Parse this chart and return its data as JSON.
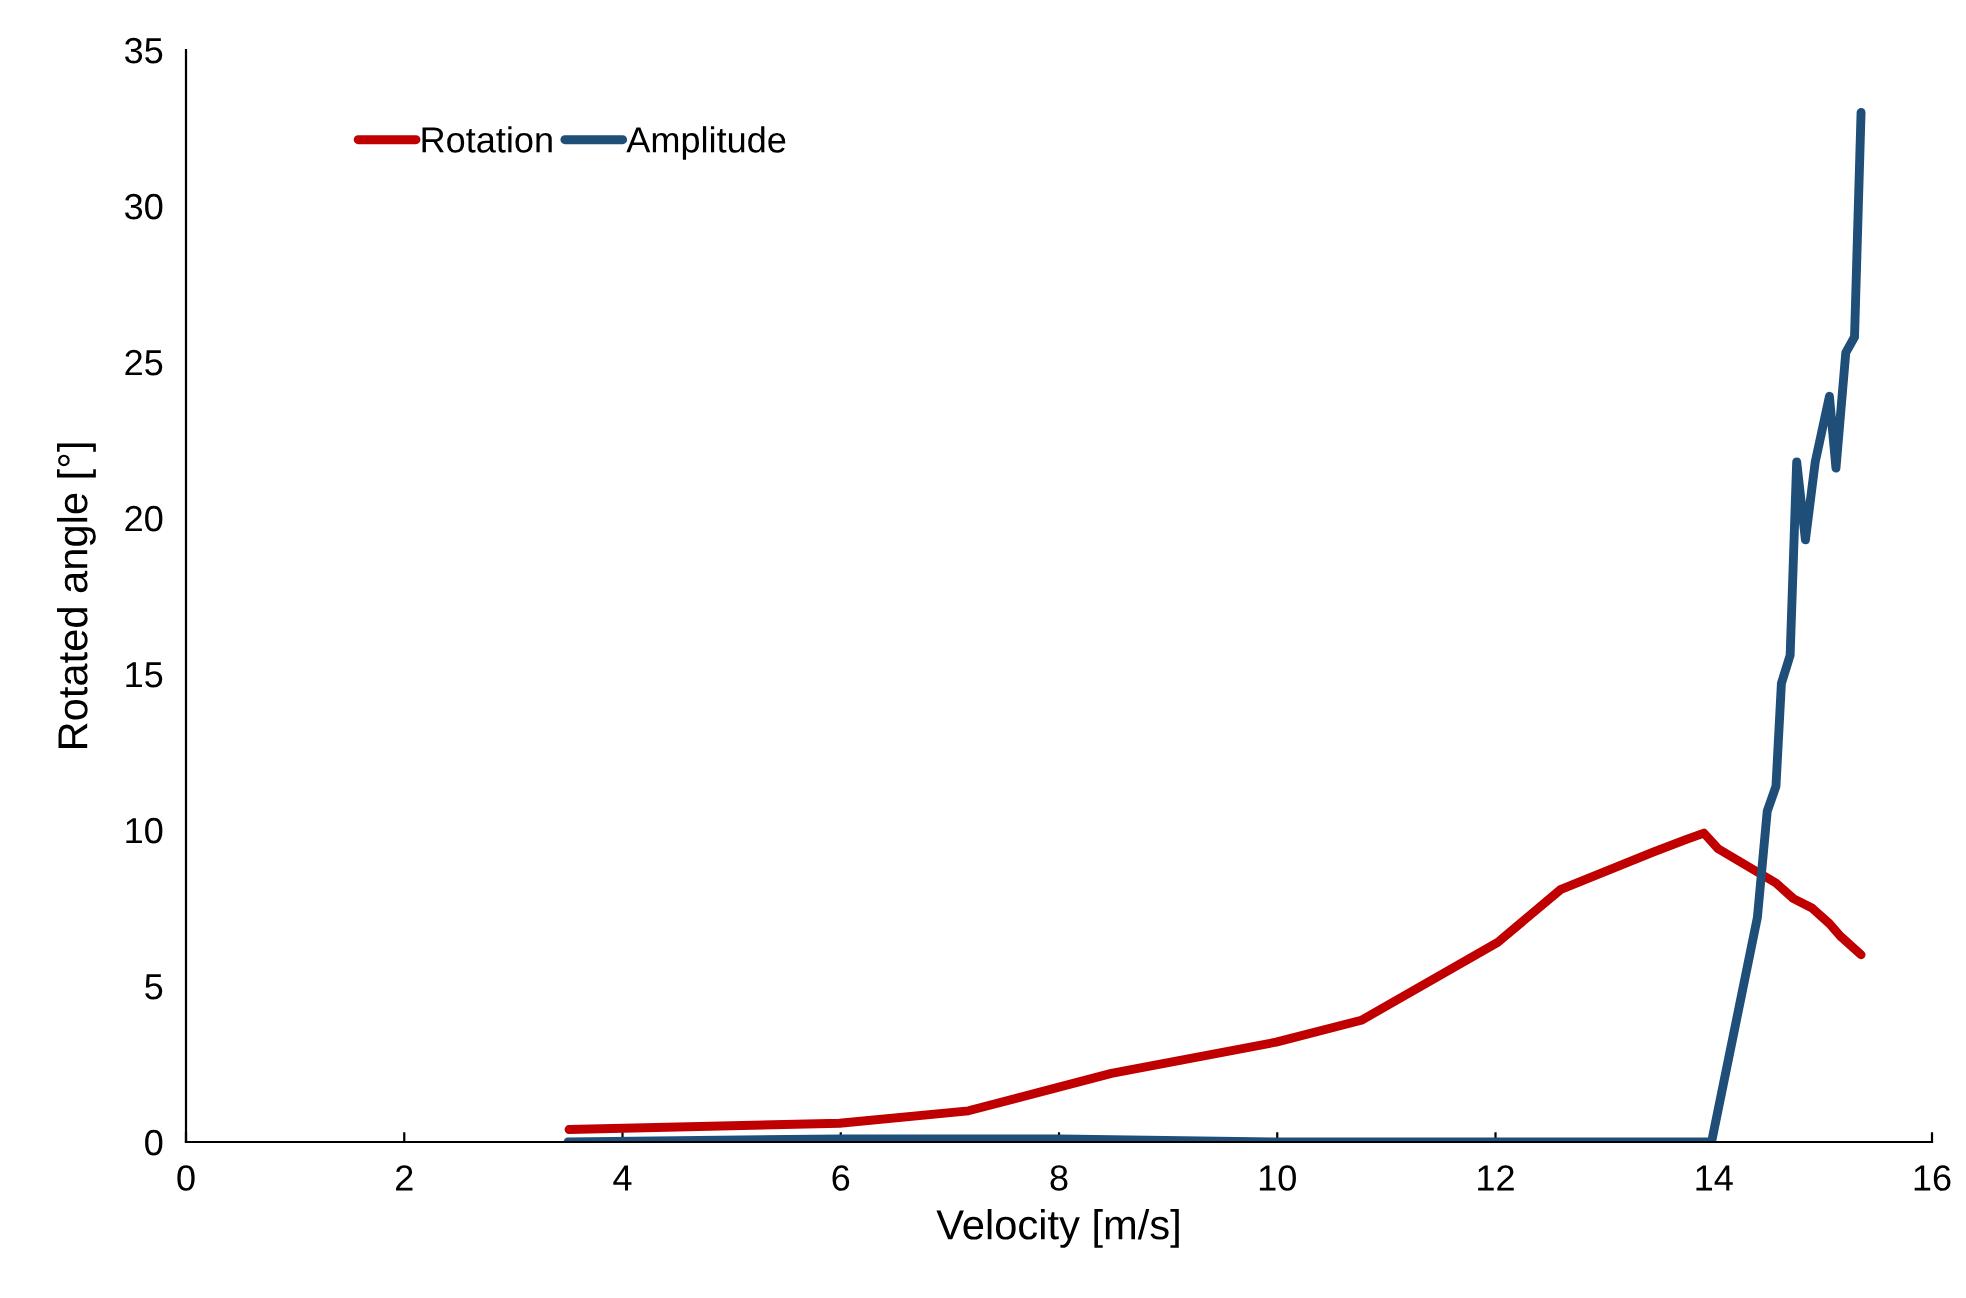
{
  "chart_data": {
    "type": "line",
    "xlabel": "Velocity [m/s]",
    "ylabel": "Rotated angle [°]",
    "xlim": [
      0,
      16
    ],
    "xticks": [
      0,
      2,
      4,
      6,
      8,
      10,
      12,
      14,
      16
    ],
    "ylim": [
      0,
      35
    ],
    "yticks": [
      0,
      5,
      10,
      15,
      20,
      25,
      30,
      35
    ],
    "grid": false,
    "legend": "top left",
    "marker": "none",
    "line_style": "solid",
    "series": [
      {
        "name": "Rotation",
        "color": "#c00000",
        "x": [
          3.51,
          5.99,
          7.17,
          8.48,
          9.99,
          10.77,
          12.02,
          12.6,
          13.45,
          13.75,
          13.91,
          14.04,
          14.57,
          14.73,
          14.9,
          15.06,
          15.16,
          15.35
        ],
        "values": [
          0.4,
          0.6,
          1.0,
          2.2,
          3.2,
          3.9,
          6.4,
          8.1,
          9.3,
          9.7,
          9.9,
          9.4,
          8.3,
          7.8,
          7.5,
          7.0,
          6.6,
          6.0
        ]
      },
      {
        "name": "Amplitude",
        "color": "#1f4e79",
        "x": [
          3.5,
          6.0,
          8.0,
          10.0,
          12.0,
          13.98,
          14.4,
          14.49,
          14.57,
          14.62,
          14.7,
          14.76,
          14.84,
          14.93,
          15.06,
          15.12,
          15.21,
          15.29,
          15.35
        ],
        "values": [
          0.0,
          0.1,
          0.1,
          0.0,
          0.0,
          0.0,
          7.2,
          10.6,
          11.4,
          14.7,
          15.6,
          21.8,
          19.3,
          21.8,
          23.9,
          21.6,
          25.3,
          25.8,
          33.0
        ]
      }
    ]
  }
}
